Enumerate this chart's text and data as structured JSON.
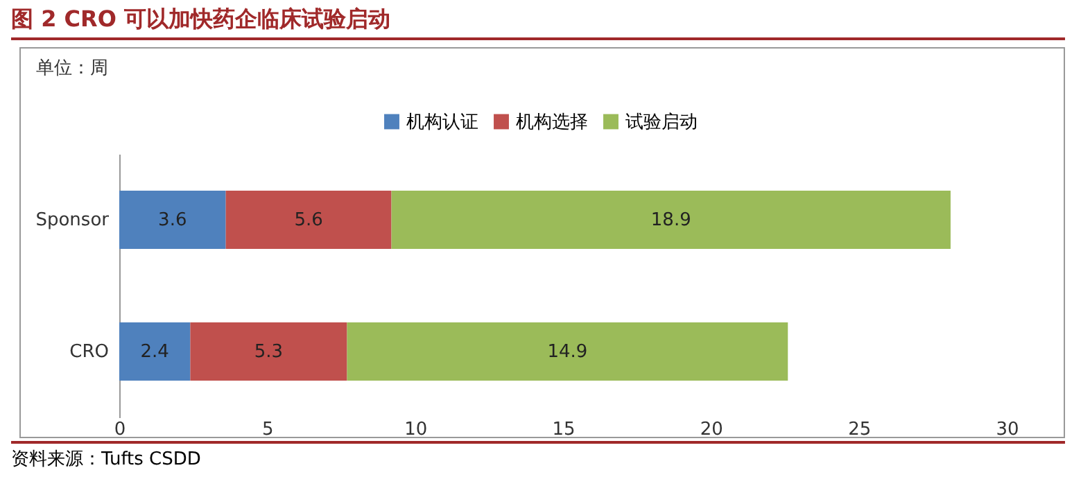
{
  "chart_data": {
    "type": "bar",
    "title": "图 2 CRO 可以加快药企临床试验启动",
    "orientation": "horizontal",
    "stacked": true,
    "categories": [
      "Sponsor",
      "CRO"
    ],
    "series": [
      {
        "name": "机构认证",
        "color": "#4f81bd",
        "values": [
          3.6,
          2.4
        ]
      },
      {
        "name": "机构选择",
        "color": "#c0504d",
        "values": [
          5.6,
          5.3
        ]
      },
      {
        "name": "试验启动",
        "color": "#9bbb59",
        "values": [
          18.9,
          14.9
        ]
      }
    ],
    "xlim": [
      0,
      30
    ],
    "xticks": [
      0,
      5,
      10,
      15,
      20,
      25,
      30
    ],
    "data_labels": true,
    "legend": "top",
    "grid": false,
    "annotations": [
      "单位：周",
      "资料来源：Tufts CSDD"
    ]
  }
}
